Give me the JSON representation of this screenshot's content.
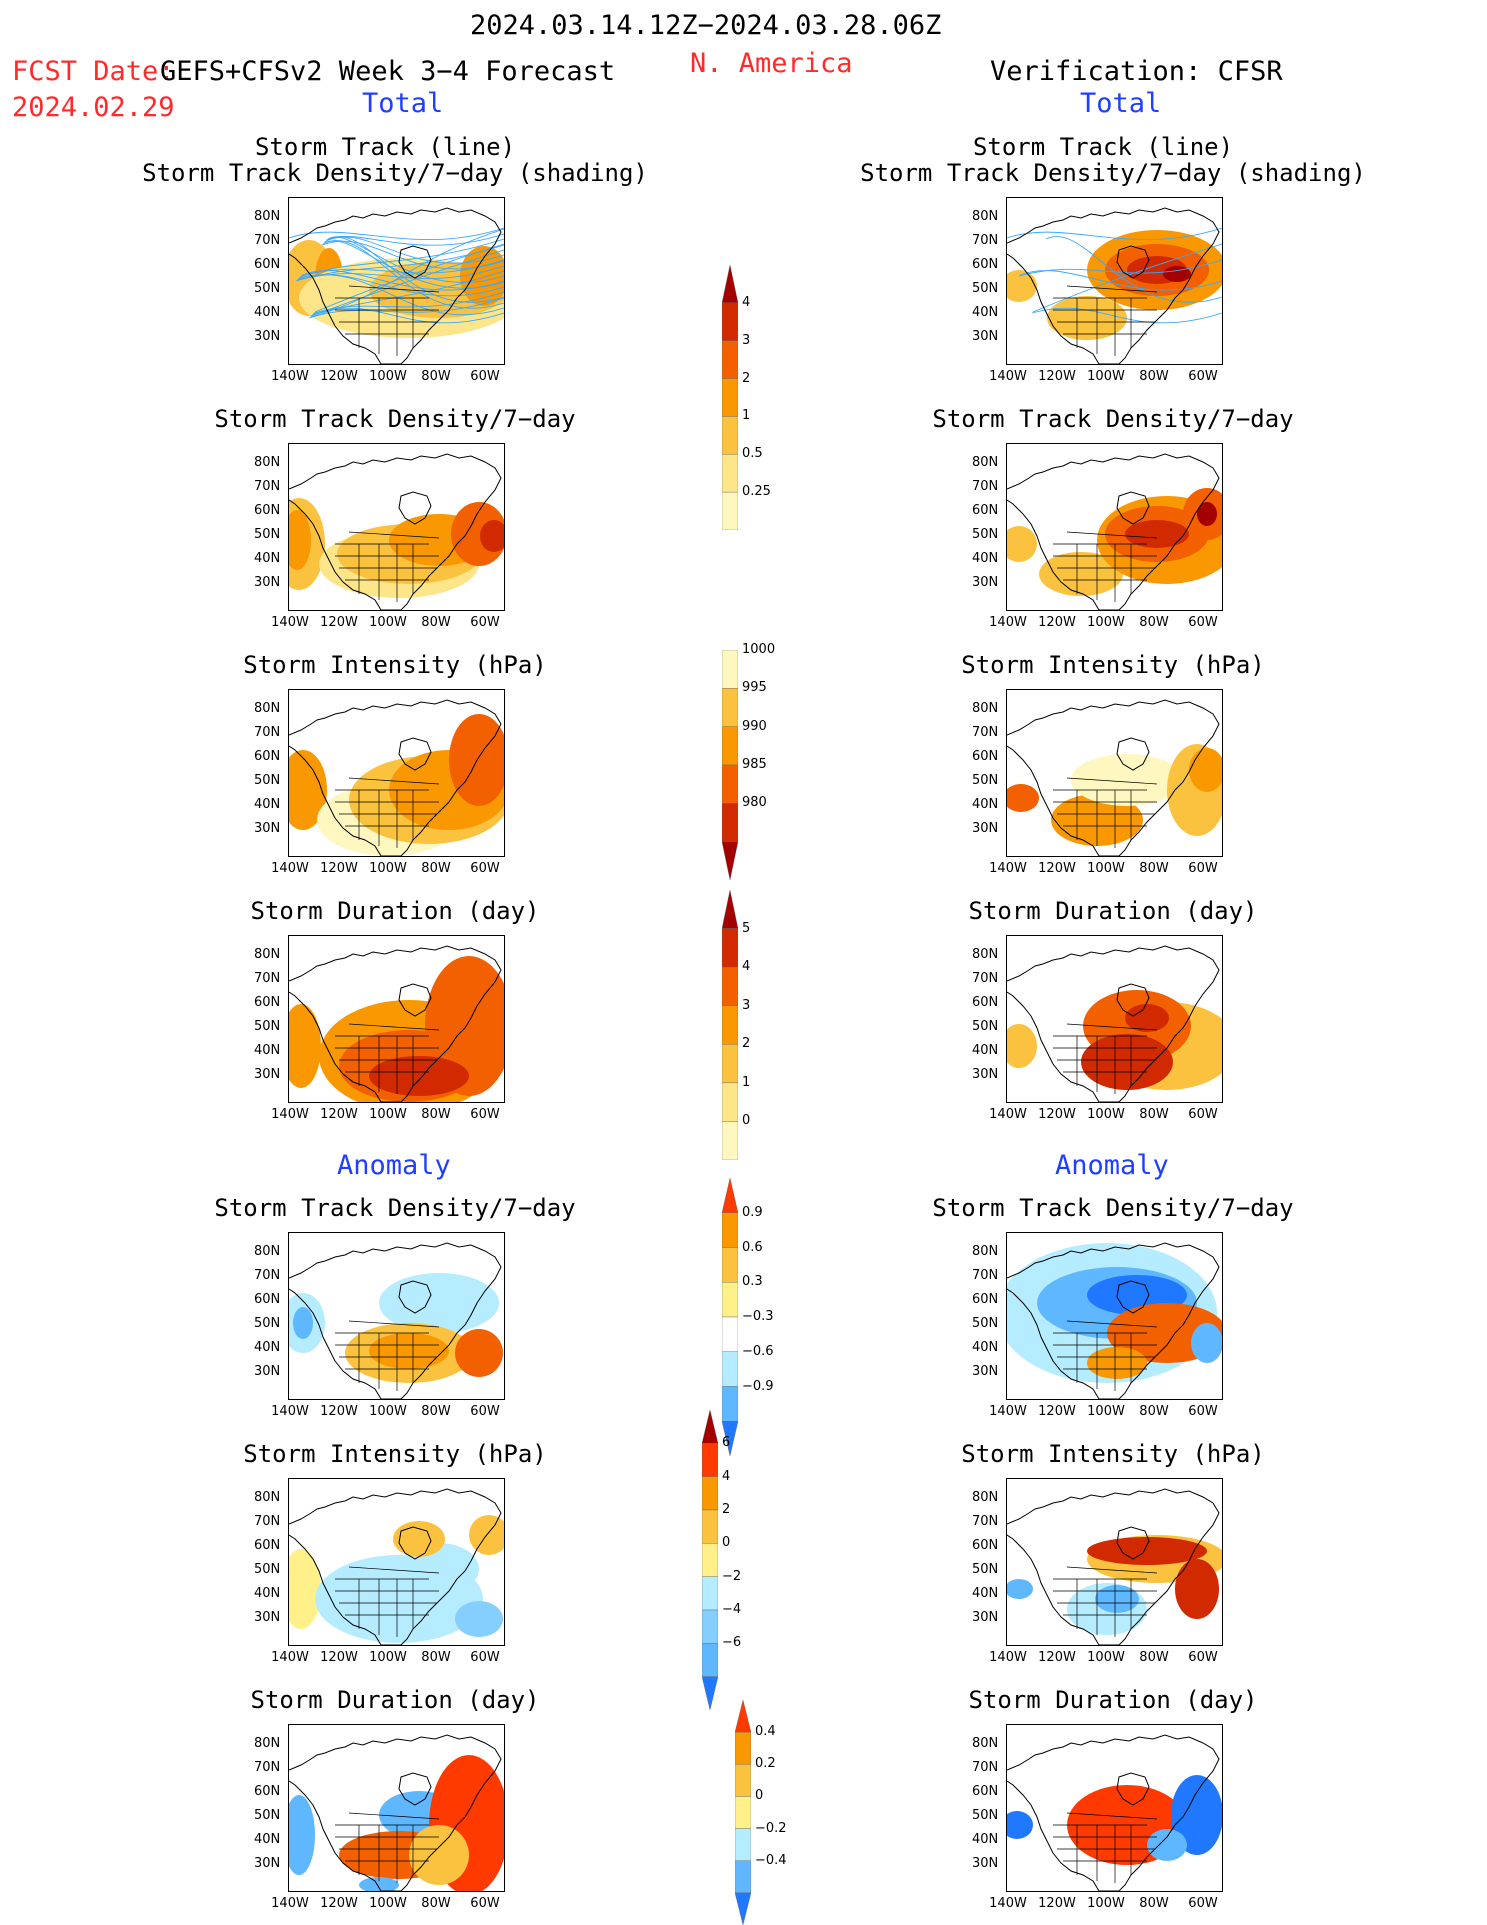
{
  "header": {
    "period": "2024.03.14.12Z−2024.03.28.06Z",
    "fcst_date_label": "FCST Date:",
    "fcst_date": "2024.02.29",
    "model": "GEFS+CFSv2 Week 3−4 Forecast",
    "region": "N. America",
    "verification": "Verification: CFSR",
    "left_total": "Total",
    "right_total": "Total",
    "left_anomaly": "Anomaly",
    "right_anomaly": "Anomaly"
  },
  "panel_titles": {
    "track_line": "Storm Track (line)",
    "track_shading": "Storm Track Density/7−day (shading)",
    "density": "Storm Track Density/7−day",
    "intensity": "Storm Intensity (hPa)",
    "duration": "Storm Duration (day)"
  },
  "axes": {
    "lat_ticks": [
      "80N",
      "70N",
      "60N",
      "50N",
      "40N",
      "30N"
    ],
    "lon_ticks": [
      "140W",
      "120W",
      "100W",
      "80W",
      "60W"
    ]
  },
  "colorbars": {
    "density_total": {
      "labels": [
        "4",
        "3",
        "2",
        "1",
        "0.5",
        "0.25"
      ],
      "colors": [
        "#a50000",
        "#d22a00",
        "#f26000",
        "#f99800",
        "#fbc23f",
        "#fde68a",
        "#fff7c0"
      ]
    },
    "intensity_total": {
      "labels": [
        "1000",
        "995",
        "990",
        "985",
        "980"
      ],
      "colors": [
        "#fff7c0",
        "#fbc23f",
        "#f99800",
        "#f26000",
        "#d22a00",
        "#a50000"
      ]
    },
    "duration_total": {
      "labels": [
        "5",
        "4",
        "3",
        "2",
        "1",
        "0"
      ],
      "colors": [
        "#a50000",
        "#d22a00",
        "#f26000",
        "#f99800",
        "#fbc23f",
        "#fde68a",
        "#fff7c0"
      ]
    },
    "density_anom": {
      "labels": [
        "0.9",
        "0.6",
        "0.3",
        "−0.3",
        "−0.6",
        "−0.9"
      ],
      "colors": [
        "#ff3a00",
        "#f99800",
        "#fbc23f",
        "#fff08a",
        "#ffffff",
        "#b6ecff",
        "#5fb8ff",
        "#1f78ff"
      ]
    },
    "intensity_anom": {
      "labels": [
        "6",
        "4",
        "2",
        "0",
        "−2",
        "−4",
        "−6"
      ],
      "colors": [
        "#a50000",
        "#ff3a00",
        "#f99800",
        "#fbc23f",
        "#fff08a",
        "#b6ecff",
        "#84cfff",
        "#5fb8ff",
        "#1f78ff"
      ]
    },
    "duration_anom": {
      "labels": [
        "0.4",
        "0.2",
        "0",
        "−0.2",
        "−0.4"
      ],
      "colors": [
        "#ff3a00",
        "#f99800",
        "#fbc23f",
        "#fff08a",
        "#b6ecff",
        "#5fb8ff",
        "#1f78ff"
      ]
    }
  },
  "colors": {
    "header_red": "#ff2a2a",
    "header_blue": "#1f3fff",
    "track_lines": "#3aa8ff"
  }
}
